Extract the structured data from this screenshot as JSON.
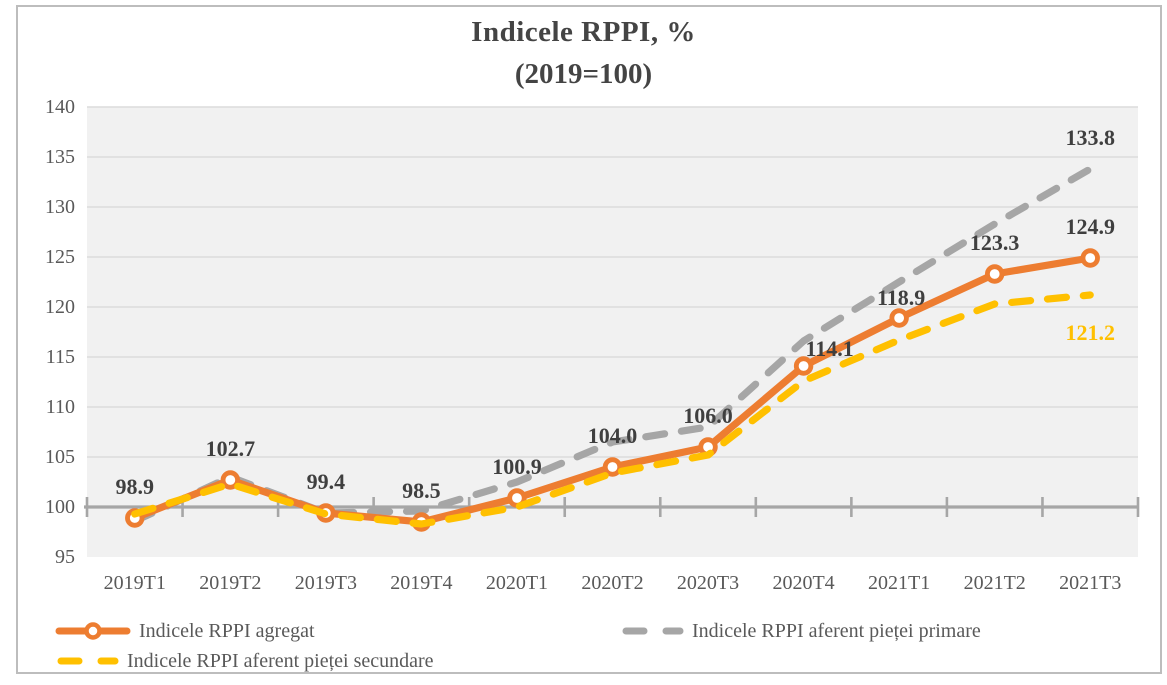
{
  "chart": {
    "title": "Indicele RPPI, %",
    "subtitle": "(2019=100)"
  },
  "chart_data": {
    "type": "line",
    "title": "Indicele RPPI, %",
    "subtitle": "(2019=100)",
    "categories": [
      "2019T1",
      "2019T2",
      "2019T3",
      "2019T4",
      "2020T1",
      "2020T2",
      "2020T3",
      "2020T4",
      "2021T1",
      "2021T2",
      "2021T3"
    ],
    "series": [
      {
        "id": "agregat",
        "name": "Indicele RPPI agregat",
        "color": "#ED7D31",
        "line_style": "solid",
        "marker": true,
        "values": [
          98.9,
          102.7,
          99.4,
          98.5,
          100.9,
          104.0,
          106.0,
          114.1,
          118.9,
          123.3,
          124.9
        ],
        "labels": [
          "98.9",
          "102.7",
          "99.4",
          "98.5",
          "100.9",
          "104.0",
          "106.0",
          "114.1",
          "118.9",
          "123.3",
          "124.9"
        ],
        "label_color": "#3F3F3F",
        "label_offsets": {
          "7": [
            26,
            -10
          ],
          "8": [
            2,
            -13
          ]
        }
      },
      {
        "id": "primare",
        "name": "Indicele RPPI aferent pieței primare",
        "color": "#A6A6A6",
        "line_style": "dashed",
        "marker": false,
        "values": [
          98.6,
          103.0,
          99.4,
          99.6,
          102.5,
          106.5,
          108.0,
          116.6,
          122.5,
          128.3,
          133.8
        ],
        "end_label": "133.8",
        "end_label_color": "#3F3F3F",
        "end_label_offset": [
          0,
          -24
        ]
      },
      {
        "id": "secundare",
        "name": "Indicele RPPI aferent pieței secundare",
        "color": "#FFC000",
        "line_style": "dashed",
        "marker": false,
        "values": [
          99.3,
          102.3,
          99.3,
          98.3,
          100.0,
          103.4,
          105.2,
          112.6,
          116.7,
          120.3,
          121.2
        ],
        "end_label": "121.2",
        "end_label_color": "#FFC000",
        "end_label_offset": [
          0,
          45
        ]
      }
    ],
    "ylim": [
      95,
      140
    ],
    "yticks": [
      95,
      100,
      105,
      110,
      115,
      120,
      125,
      130,
      135,
      140
    ],
    "baseline": 100,
    "grid": true,
    "legend_position": "bottom",
    "xlabel": "",
    "ylabel": "",
    "colors": {
      "plot_bg": "#F1F1F1",
      "grid": "#DCDCDC",
      "baseline": "#A6A6A6",
      "axis_text": "#595959",
      "title_text": "#444444"
    }
  }
}
